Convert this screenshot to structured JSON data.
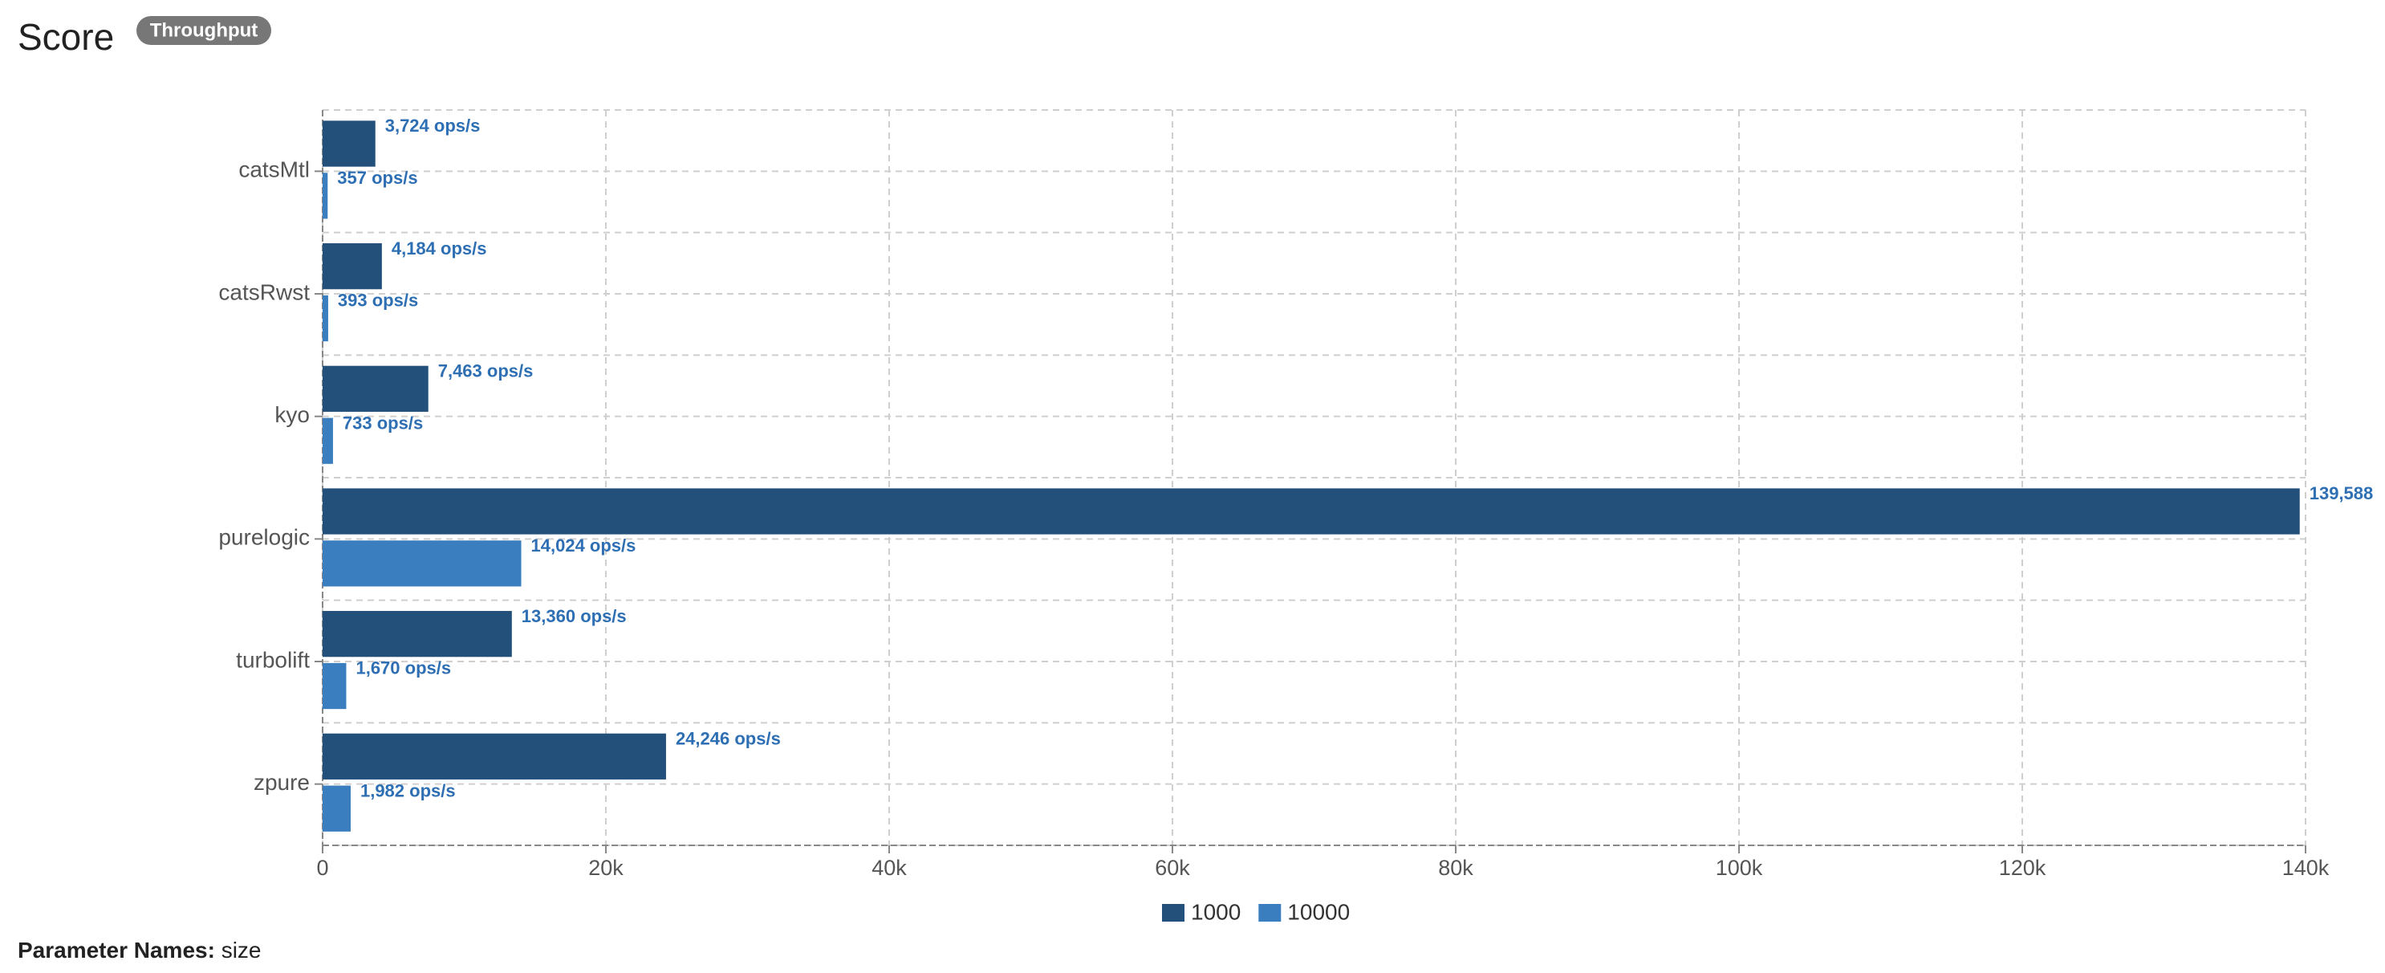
{
  "chart_data": {
    "type": "hbar",
    "title": "Score",
    "badge": "Throughput",
    "categories": [
      "catsMtl",
      "catsRwst",
      "kyo",
      "purelogic",
      "turbolift",
      "zpure"
    ],
    "series": [
      {
        "name": "1000",
        "color": "#234f7b",
        "values": [
          3724,
          4184,
          7463,
          139588,
          13360,
          24246
        ],
        "value_labels": [
          "3,724 ops/s",
          "4,184 ops/s",
          "7,463 ops/s",
          "139,588",
          "13,360 ops/s",
          "24,246 ops/s"
        ]
      },
      {
        "name": "10000",
        "color": "#3a7ebf",
        "values": [
          357,
          393,
          733,
          14024,
          1670,
          1982
        ],
        "value_labels": [
          "357 ops/s",
          "393 ops/s",
          "733 ops/s",
          "14,024 ops/s",
          "1,670 ops/s",
          "1,982 ops/s"
        ]
      }
    ],
    "xlim": [
      0,
      140000
    ],
    "xticks": [
      0,
      {
        "value": 20000,
        "label": "20k"
      },
      {
        "value": 40000,
        "label": "40k"
      },
      {
        "value": 60000,
        "label": "60k"
      },
      {
        "value": 80000,
        "label": "80k"
      },
      {
        "value": 100000,
        "label": "100k"
      },
      {
        "value": 120000,
        "label": "120k"
      },
      {
        "value": 140000,
        "label": "140k"
      }
    ],
    "grid": true
  },
  "footer": {
    "label": "Parameter Names:",
    "value": "size"
  }
}
